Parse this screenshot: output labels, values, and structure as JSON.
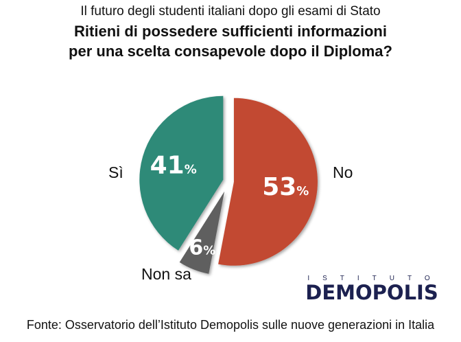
{
  "header": {
    "supertitle": "Il futuro degli studenti italiani dopo gli esami di Stato"
  },
  "chart_data": {
    "type": "pie",
    "title": "Ritieni di possedere sufficienti informazioni per una scelta consapevole dopo il Diploma?",
    "title_lines": [
      "Ritieni di possedere sufficienti informazioni",
      "per una scelta consapevole dopo il Diploma?"
    ],
    "slices": [
      {
        "label": "No",
        "value": 53,
        "display": "53",
        "color": "#c24a32"
      },
      {
        "label": "Non sa",
        "value": 6,
        "display": "6",
        "color": "#5e5e5e"
      },
      {
        "label": "Sì",
        "value": 41,
        "display": "41",
        "color": "#2e8a78"
      }
    ],
    "unit": "%"
  },
  "logo": {
    "top": "ISTITUTO",
    "main": "DEMOPOLIS"
  },
  "footer": {
    "source": "Fonte: Osservatorio dell’Istituto Demopolis sulle nuove generazioni in Italia"
  }
}
